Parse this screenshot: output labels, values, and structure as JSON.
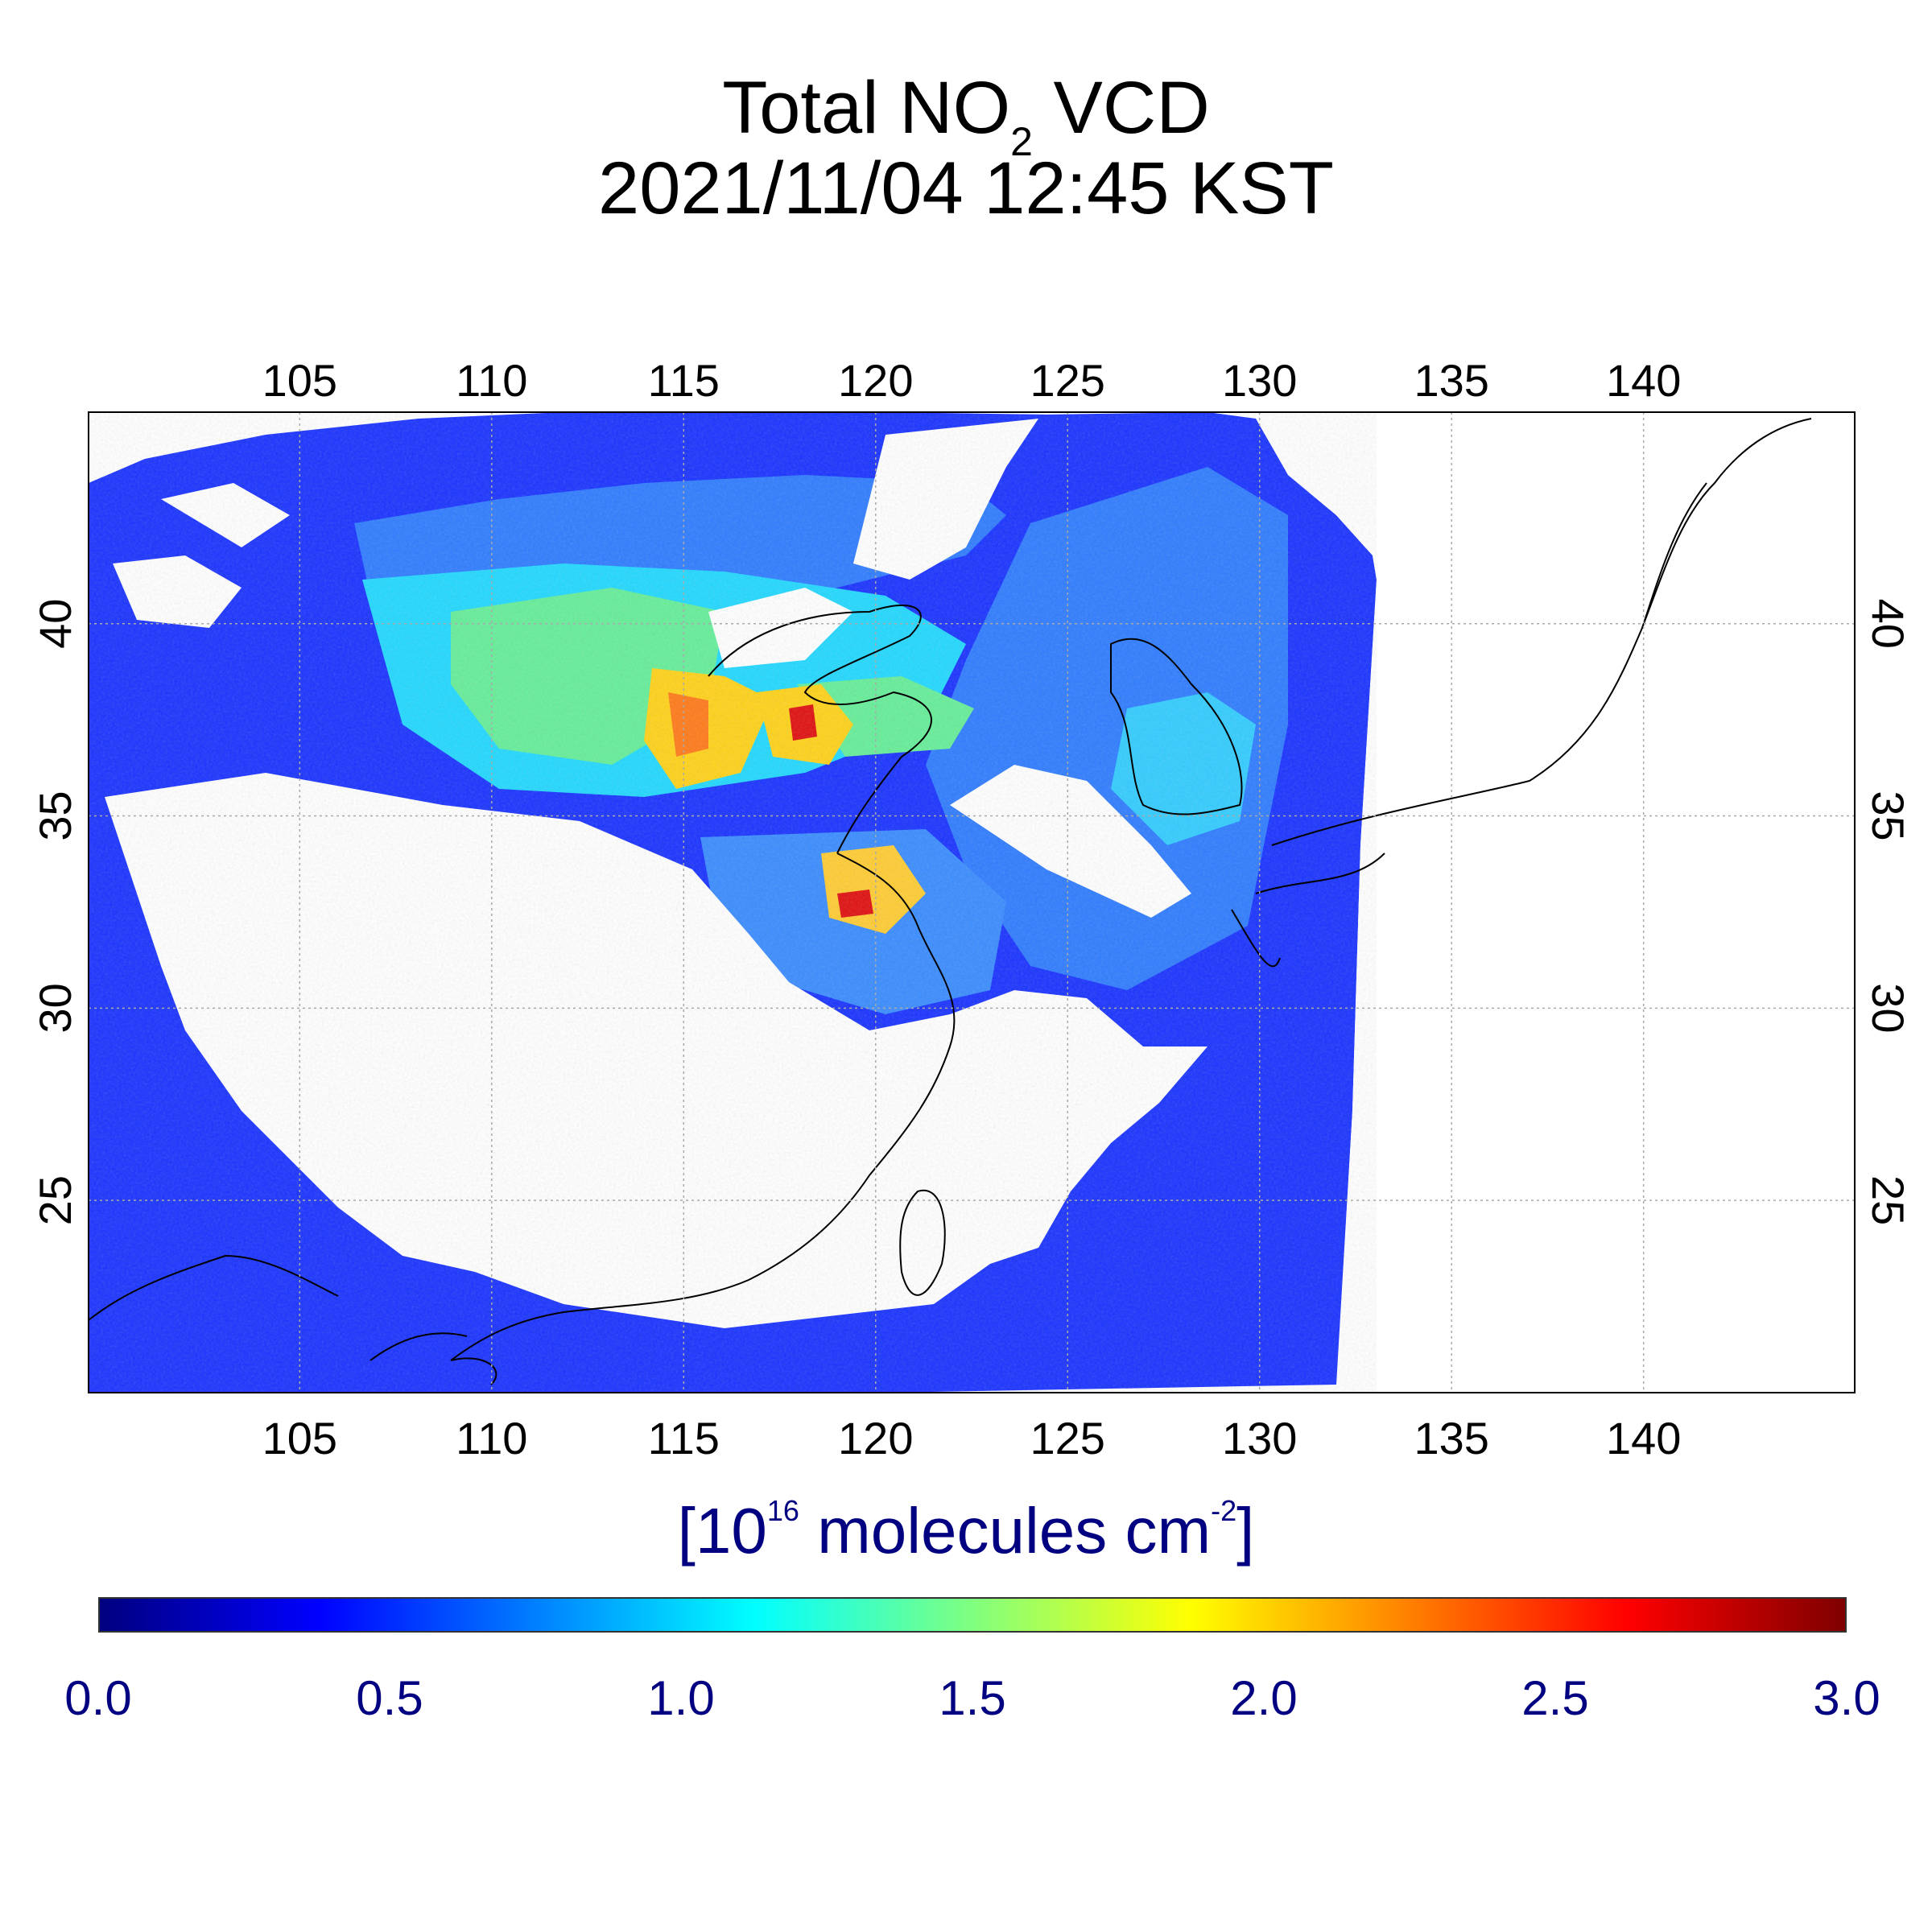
{
  "title": {
    "prefix": "Total NO",
    "subscript": "2",
    "suffix": " VCD",
    "datetime": "2021/11/04 12:45 KST"
  },
  "map": {
    "lon_range": [
      99.5,
      145.5
    ],
    "lat_range": [
      20.0,
      45.5
    ],
    "lon_ticks": [
      "105",
      "110",
      "115",
      "120",
      "125",
      "130",
      "135",
      "140"
    ],
    "lat_ticks": [
      "25",
      "30",
      "35",
      "40"
    ],
    "grid": true,
    "no_data_color": "#ffffff"
  },
  "units": {
    "open": "[10",
    "exponent": "16",
    "middle": " molecules cm",
    "exponent2": "-2",
    "close": "]"
  },
  "colorbar": {
    "min": 0.0,
    "max": 3.0,
    "colors": [
      "#00007f",
      "#0000ff",
      "#0080ff",
      "#00ffff",
      "#80ff80",
      "#ffff00",
      "#ff8000",
      "#ff0000",
      "#7f0000"
    ],
    "labels": [
      "0.0",
      "0.5",
      "1.0",
      "1.5",
      "2.0",
      "2.5",
      "3.0"
    ]
  }
}
